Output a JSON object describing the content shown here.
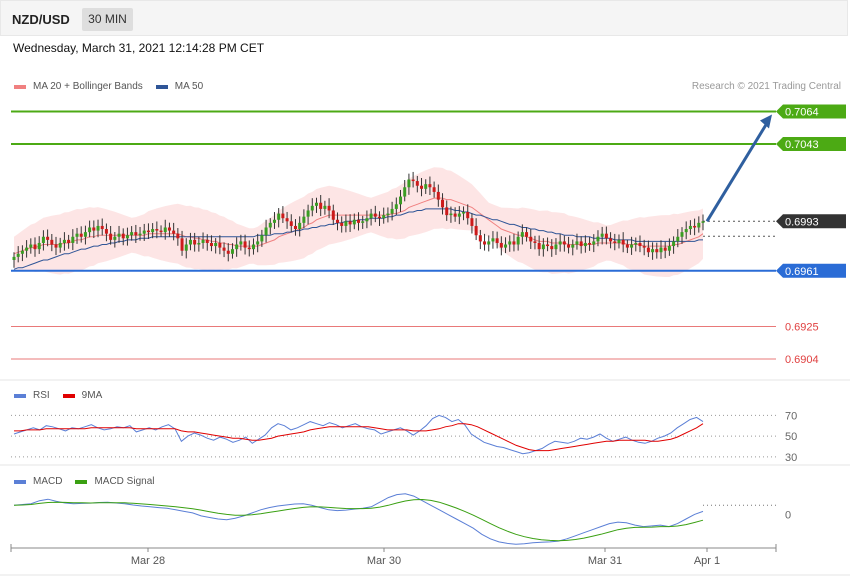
{
  "header": {
    "symbol": "NZD/USD",
    "timeframe": "30 MIN"
  },
  "datetime": "Wednesday, March 31, 2021 12:14:28 PM CET",
  "credit": "Research © 2021 Trading Central",
  "legends": {
    "price": [
      {
        "label": "MA 20 + Bollinger Bands",
        "color": "#f08080"
      },
      {
        "label": "MA 50",
        "color": "#2f5597"
      }
    ],
    "rsi": [
      {
        "label": "RSI",
        "color": "#5b7fd6"
      },
      {
        "label": "9MA",
        "color": "#e00000"
      }
    ],
    "macd": [
      {
        "label": "MACD",
        "color": "#5b7fd6"
      },
      {
        "label": "MACD Signal",
        "color": "#3aa012"
      }
    ]
  },
  "chart_data": [
    {
      "type": "candlestick",
      "instrument": "NZD/USD",
      "interval": "30 MIN",
      "ylim": [
        0.6893,
        0.7074
      ],
      "levels": [
        {
          "value": 0.7064,
          "label": "0.7064",
          "kind": "resistance",
          "color": "#4caa14"
        },
        {
          "value": 0.7043,
          "label": "0.7043",
          "kind": "resistance",
          "color": "#4caa14"
        },
        {
          "value": 0.6993,
          "label": "0.6993",
          "kind": "last",
          "color": "#333333"
        },
        {
          "value": 0.6961,
          "label": "0.6961",
          "kind": "pivot",
          "color": "#2a6cd6"
        },
        {
          "value": 0.6925,
          "label": "0.6925",
          "kind": "support",
          "color": "#e04040"
        },
        {
          "value": 0.6904,
          "label": "0.6904",
          "kind": "support",
          "color": "#e04040"
        }
      ],
      "projection": {
        "from": 0.6993,
        "to": 0.7064,
        "color": "#2f5f9f"
      },
      "x_ticks": [
        "Mar 28",
        "Mar 30",
        "Mar 31",
        "Apr 1"
      ],
      "close_series": [
        0.697,
        0.6972,
        0.6974,
        0.6976,
        0.6978,
        0.6975,
        0.6979,
        0.6983,
        0.6981,
        0.6978,
        0.6976,
        0.6979,
        0.6981,
        0.6979,
        0.6983,
        0.6985,
        0.6983,
        0.6986,
        0.6989,
        0.6987,
        0.699,
        0.6988,
        0.6985,
        0.6981,
        0.6983,
        0.6985,
        0.6982,
        0.6984,
        0.6986,
        0.6984,
        0.6985,
        0.6987,
        0.6986,
        0.6988,
        0.6987,
        0.6986,
        0.6989,
        0.6987,
        0.6985,
        0.6982,
        0.6974,
        0.6978,
        0.6981,
        0.6978,
        0.6979,
        0.6981,
        0.6979,
        0.6977,
        0.6979,
        0.6976,
        0.6974,
        0.6972,
        0.6975,
        0.6978,
        0.698,
        0.6976,
        0.6975,
        0.6978,
        0.698,
        0.6984,
        0.6989,
        0.6992,
        0.6994,
        0.6998,
        0.6995,
        0.6993,
        0.699,
        0.6988,
        0.6992,
        0.6996,
        0.7,
        0.7003,
        0.7005,
        0.7001,
        0.7003,
        0.7,
        0.6994,
        0.6992,
        0.699,
        0.6993,
        0.6991,
        0.6994,
        0.6992,
        0.6993,
        0.6995,
        0.6998,
        0.6996,
        0.6995,
        0.6997,
        0.6998,
        0.7001,
        0.7004,
        0.7009,
        0.7015,
        0.702,
        0.7019,
        0.7016,
        0.7014,
        0.7017,
        0.7015,
        0.7012,
        0.7007,
        0.7002,
        0.6997,
        0.6998,
        0.6996,
        0.6998,
        0.6999,
        0.6995,
        0.699,
        0.6984,
        0.698,
        0.6978,
        0.698,
        0.6982,
        0.6979,
        0.6976,
        0.6978,
        0.698,
        0.6978,
        0.6983,
        0.6986,
        0.6983,
        0.698,
        0.6979,
        0.6975,
        0.6978,
        0.6977,
        0.6975,
        0.6978,
        0.698,
        0.6978,
        0.6976,
        0.6978,
        0.698,
        0.6977,
        0.6979,
        0.6978,
        0.698,
        0.6983,
        0.6985,
        0.6982,
        0.698,
        0.6979,
        0.6981,
        0.6978,
        0.6976,
        0.6978,
        0.6979,
        0.6977,
        0.6976,
        0.6973,
        0.6975,
        0.6973,
        0.6976,
        0.6974,
        0.6977,
        0.698,
        0.6983,
        0.6986,
        0.6988,
        0.699,
        0.6989,
        0.6992,
        0.6993
      ],
      "ma20": [
        0.6972,
        0.6973,
        0.6974,
        0.6975,
        0.6976,
        0.6976,
        0.6977,
        0.6978,
        0.6978,
        0.6978,
        0.6978,
        0.6978,
        0.6979,
        0.6979,
        0.698,
        0.6981,
        0.6981,
        0.6982,
        0.6983,
        0.6983,
        0.6984,
        0.6984,
        0.6984,
        0.6984,
        0.6984,
        0.6984,
        0.6984,
        0.6984,
        0.6984,
        0.6984,
        0.6984,
        0.6984,
        0.6985,
        0.6985,
        0.6985,
        0.6985,
        0.6985,
        0.6985,
        0.6985,
        0.6985,
        0.6984,
        0.6983,
        0.6983,
        0.6982,
        0.6982,
        0.6981,
        0.6981,
        0.698,
        0.698,
        0.6979,
        0.6979,
        0.6978,
        0.6978,
        0.6977,
        0.6977,
        0.6977,
        0.6977,
        0.6977,
        0.6977,
        0.6978,
        0.6979,
        0.698,
        0.6981,
        0.6983,
        0.6984,
        0.6985,
        0.6986,
        0.6987,
        0.6988,
        0.6989,
        0.6991,
        0.6992,
        0.6994,
        0.6995,
        0.6996,
        0.6997,
        0.6997,
        0.6997,
        0.6997,
        0.6997,
        0.6997,
        0.6997,
        0.6997,
        0.6997,
        0.6997,
        0.6997,
        0.6997,
        0.6997,
        0.6997,
        0.6997,
        0.6998,
        0.6998,
        0.6999,
        0.7,
        0.7002,
        0.7003,
        0.7004,
        0.7005,
        0.7006,
        0.7007,
        0.7008,
        0.7008,
        0.7008,
        0.7007,
        0.7007,
        0.7006,
        0.7005,
        0.7004,
        0.7003,
        0.7002,
        0.7,
        0.6998,
        0.6996,
        0.6994,
        0.6992,
        0.699,
        0.6988,
        0.6987,
        0.6986,
        0.6985,
        0.6984,
        0.6984,
        0.6983,
        0.6982,
        0.6981,
        0.698,
        0.698,
        0.698,
        0.6979,
        0.6979,
        0.6979,
        0.6979,
        0.6978,
        0.6978,
        0.6978,
        0.6978,
        0.6978,
        0.6978,
        0.6978,
        0.6979,
        0.6979,
        0.6979,
        0.6979,
        0.6979,
        0.6979,
        0.6979,
        0.6978,
        0.6978,
        0.6978,
        0.6978,
        0.6977,
        0.6977,
        0.6977,
        0.6977,
        0.6977,
        0.6977,
        0.6977,
        0.6978,
        0.6978,
        0.6979,
        0.698,
        0.6981,
        0.6982,
        0.6983,
        0.6985
      ],
      "ma50": [
        0.6962,
        0.6963,
        0.6963,
        0.6964,
        0.6965,
        0.6966,
        0.6967,
        0.6968,
        0.6968,
        0.6969,
        0.697,
        0.6971,
        0.6972,
        0.6972,
        0.6973,
        0.6974,
        0.6975,
        0.6975,
        0.6976,
        0.6977,
        0.6977,
        0.6978,
        0.6978,
        0.6979,
        0.6979,
        0.698,
        0.698,
        0.6981,
        0.6981,
        0.6981,
        0.6982,
        0.6982,
        0.6982,
        0.6983,
        0.6983,
        0.6983,
        0.6983,
        0.6983,
        0.6983,
        0.6983,
        0.6983,
        0.6983,
        0.6983,
        0.6983,
        0.6983,
        0.6983,
        0.6983,
        0.6983,
        0.6983,
        0.6983,
        0.6983,
        0.6983,
        0.6983,
        0.6983,
        0.6983,
        0.6983,
        0.6983,
        0.6983,
        0.6984,
        0.6984,
        0.6984,
        0.6984,
        0.6985,
        0.6985,
        0.6985,
        0.6986,
        0.6986,
        0.6987,
        0.6987,
        0.6988,
        0.6988,
        0.6989,
        0.6989,
        0.699,
        0.699,
        0.6991,
        0.6991,
        0.6992,
        0.6992,
        0.6993,
        0.6993,
        0.6993,
        0.6994,
        0.6994,
        0.6994,
        0.6995,
        0.6995,
        0.6995,
        0.6995,
        0.6996,
        0.6996,
        0.6997,
        0.6997,
        0.6998,
        0.6999,
        0.6999,
        0.7,
        0.7,
        0.7001,
        0.7001,
        0.7001,
        0.7001,
        0.7001,
        0.7001,
        0.7001,
        0.7,
        0.7,
        0.6999,
        0.6999,
        0.6998,
        0.6997,
        0.6997,
        0.6996,
        0.6995,
        0.6994,
        0.6994,
        0.6993,
        0.6992,
        0.6991,
        0.6991,
        0.699,
        0.6989,
        0.6989,
        0.6988,
        0.6988,
        0.6987,
        0.6987,
        0.6986,
        0.6986,
        0.6985,
        0.6985,
        0.6984,
        0.6984,
        0.6984,
        0.6983,
        0.6983,
        0.6983,
        0.6983,
        0.6982,
        0.6982,
        0.6982,
        0.6982,
        0.6982,
        0.6981,
        0.6981,
        0.6981,
        0.6981,
        0.6981,
        0.698,
        0.698,
        0.698,
        0.698,
        0.698,
        0.698,
        0.698,
        0.698,
        0.698,
        0.698,
        0.698,
        0.698,
        0.698,
        0.698,
        0.698,
        0.6981,
        0.6981
      ]
    },
    {
      "type": "line",
      "title": "RSI",
      "ylim": [
        25,
        80
      ],
      "yticks": [
        30,
        50,
        70
      ],
      "series": [
        {
          "name": "RSI",
          "values": [
            52,
            54,
            56,
            58,
            56,
            60,
            59,
            57,
            55,
            58,
            57,
            59,
            61,
            58,
            56,
            57,
            59,
            58,
            60,
            54,
            56,
            58,
            56,
            59,
            61,
            57,
            45,
            50,
            53,
            51,
            48,
            46,
            49,
            47,
            44,
            46,
            49,
            43,
            47,
            51,
            58,
            62,
            60,
            56,
            58,
            61,
            64,
            62,
            60,
            63,
            61,
            58,
            60,
            62,
            59,
            57,
            56,
            52,
            54,
            56,
            58,
            55,
            51,
            55,
            60,
            67,
            70,
            68,
            64,
            66,
            61,
            52,
            48,
            44,
            42,
            40,
            39,
            37,
            35,
            33,
            34,
            36,
            38,
            42,
            45,
            44,
            43,
            45,
            48,
            47,
            49,
            52,
            48,
            45,
            47,
            49,
            46,
            44,
            43,
            45,
            48,
            50,
            53,
            58,
            62,
            66,
            68,
            64
          ]
        },
        {
          "name": "9MA",
          "values": [
            55,
            55,
            56,
            56,
            56,
            57,
            57,
            57,
            57,
            57,
            57,
            57,
            58,
            58,
            58,
            58,
            58,
            58,
            58,
            57,
            57,
            57,
            57,
            57,
            57,
            57,
            55,
            54,
            54,
            53,
            52,
            51,
            50,
            49,
            48,
            48,
            47,
            46,
            46,
            47,
            48,
            50,
            51,
            52,
            53,
            54,
            56,
            57,
            58,
            59,
            59,
            59,
            59,
            59,
            59,
            59,
            58,
            57,
            56,
            56,
            56,
            56,
            55,
            55,
            55,
            56,
            57,
            59,
            60,
            62,
            62,
            61,
            59,
            56,
            53,
            50,
            47,
            44,
            41,
            39,
            37,
            36,
            36,
            36,
            37,
            38,
            39,
            40,
            41,
            42,
            43,
            44,
            45,
            45,
            46,
            46,
            46,
            46,
            46,
            45,
            45,
            46,
            47,
            49,
            52,
            55,
            58,
            62
          ]
        }
      ]
    },
    {
      "type": "line",
      "title": "MACD",
      "yticks": [
        0
      ],
      "ylim": [
        -2.2,
        1.6
      ],
      "series": [
        {
          "name": "MACD",
          "values": [
            0.6,
            0.65,
            0.7,
            0.9,
            1.0,
            0.85,
            0.75,
            0.7,
            0.72,
            0.74,
            0.78,
            0.8,
            0.75,
            0.7,
            0.62,
            0.55,
            0.5,
            0.45,
            0.4,
            0.3,
            0.2,
            0.1,
            -0.1,
            -0.2,
            -0.3,
            -0.35,
            -0.25,
            -0.1,
            0.1,
            0.3,
            0.45,
            0.55,
            0.62,
            0.68,
            0.7,
            0.6,
            0.45,
            0.3,
            0.25,
            0.28,
            0.35,
            0.4,
            0.5,
            0.8,
            1.1,
            1.3,
            1.35,
            1.2,
            0.9,
            0.6,
            0.3,
            0.0,
            -0.3,
            -0.6,
            -0.9,
            -1.3,
            -1.6,
            -1.8,
            -1.9,
            -1.95,
            -1.92,
            -1.85,
            -1.82,
            -1.8,
            -1.75,
            -1.6,
            -1.4,
            -1.2,
            -1.0,
            -0.8,
            -0.6,
            -0.5,
            -0.55,
            -0.7,
            -0.8,
            -0.75,
            -0.7,
            -0.8,
            -0.6,
            -0.3,
            0.0,
            0.2
          ]
        },
        {
          "name": "MACD Signal",
          "values": [
            0.6,
            0.62,
            0.65,
            0.72,
            0.78,
            0.8,
            0.79,
            0.77,
            0.76,
            0.75,
            0.76,
            0.77,
            0.77,
            0.76,
            0.73,
            0.69,
            0.65,
            0.6,
            0.55,
            0.5,
            0.44,
            0.37,
            0.28,
            0.18,
            0.08,
            0.0,
            -0.05,
            -0.06,
            -0.02,
            0.05,
            0.13,
            0.22,
            0.31,
            0.39,
            0.46,
            0.5,
            0.49,
            0.46,
            0.42,
            0.39,
            0.38,
            0.38,
            0.4,
            0.48,
            0.6,
            0.75,
            0.88,
            0.96,
            0.98,
            0.92,
            0.8,
            0.62,
            0.42,
            0.2,
            -0.05,
            -0.32,
            -0.6,
            -0.87,
            -1.1,
            -1.3,
            -1.46,
            -1.58,
            -1.66,
            -1.7,
            -1.72,
            -1.7,
            -1.64,
            -1.55,
            -1.43,
            -1.3,
            -1.15,
            -1.0,
            -0.9,
            -0.85,
            -0.84,
            -0.83,
            -0.8,
            -0.8,
            -0.76,
            -0.67,
            -0.53,
            -0.38
          ]
        }
      ]
    }
  ]
}
